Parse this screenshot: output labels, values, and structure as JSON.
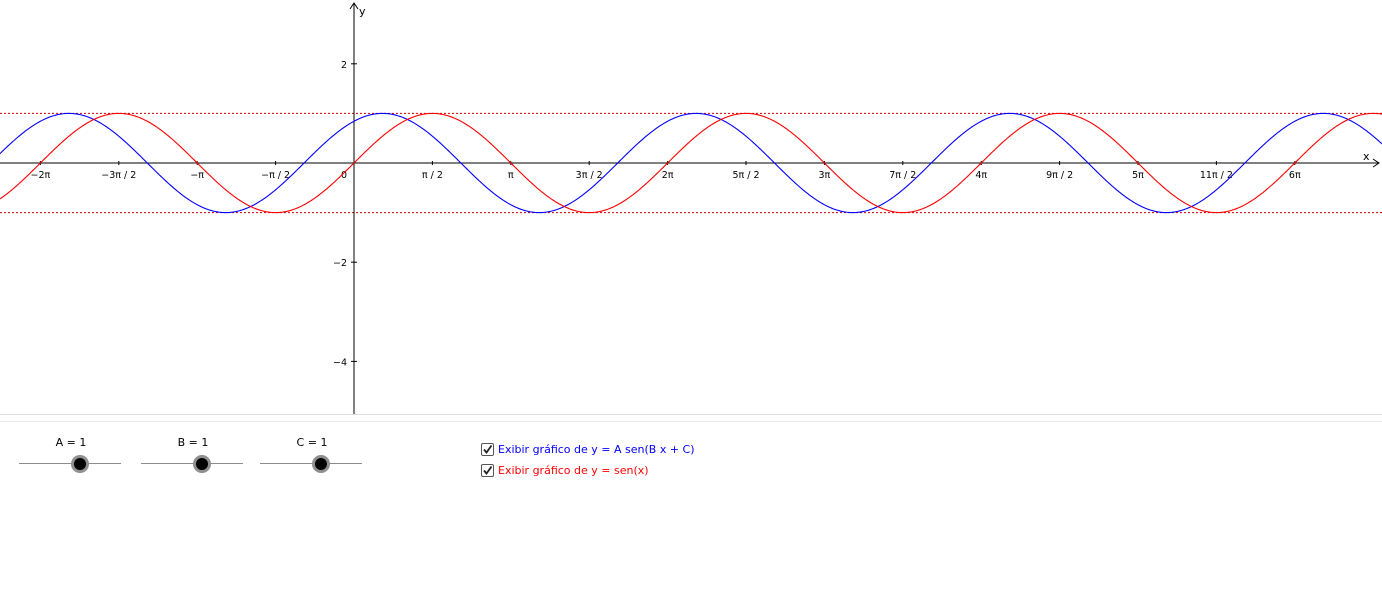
{
  "graph": {
    "axis_x_label": "x",
    "axis_y_label": "y",
    "x_tick_labels": [
      "−2π",
      "−3π / 2",
      "−π",
      "−π / 2",
      "0",
      "π / 2",
      "π",
      "3π / 2",
      "2π",
      "5π / 2",
      "3π",
      "7π / 2",
      "4π",
      "9π / 2",
      "5π",
      "11π / 2",
      "6π"
    ],
    "y_tick_labels": [
      "2",
      "−2",
      "−4"
    ],
    "colors": {
      "function_f": "#0000ff",
      "function_g": "#ff0000",
      "axis": "#000000",
      "bound_lines": "#cc0000"
    }
  },
  "chart_data": {
    "type": "line",
    "x_range": [
      -2.3,
      7.0
    ],
    "ylim": [
      -5,
      3.1
    ],
    "x_unit": "π",
    "series": [
      {
        "name": "y = A sen(B x + C)",
        "A": 1,
        "B": 1,
        "C": 1,
        "color": "#0000ff"
      },
      {
        "name": "y = sen(x)",
        "color": "#ff0000"
      }
    ],
    "reference_lines": [
      1,
      -1
    ]
  },
  "sliders": [
    {
      "label": "A = 1",
      "value": 1
    },
    {
      "label": "B = 1",
      "value": 1
    },
    {
      "label": "C = 1",
      "value": 1
    }
  ],
  "checkboxes": [
    {
      "label": "Exibir gráfico de y = A sen(B x + C)",
      "checked": true,
      "color": "#0000ff"
    },
    {
      "label": "Exibir gráfico de y = sen(x)",
      "checked": true,
      "color": "#ff0000"
    }
  ]
}
